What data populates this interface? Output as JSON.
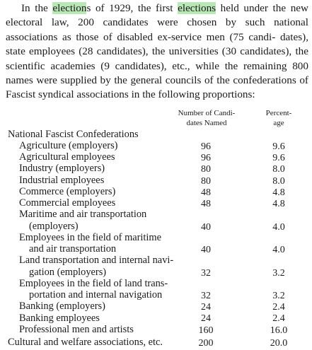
{
  "paragraph": {
    "l1_pre": "In the ",
    "l1_hl1": "election",
    "l1_mid": "s of 1929, the first ",
    "l1_hl2": "elections",
    "l1_post": " held under the new",
    "l2": "electoral law, 200 candidates were chosen by such national",
    "l3": "associations as those of disabled ex-service men (75 candi-",
    "l4": "dates), state employees (28 candidates), the universities (30",
    "l5": "candidates), the scientific academies (9 candidates), etc., while",
    "l6": "the remaining 800 names were supplied by the general councils",
    "l7": "of the confederations of Fascist syndical associations in the",
    "l8": "following proportions:"
  },
  "table": {
    "col1_header": [
      "Number of Candi-",
      "dates Named"
    ],
    "col2_header": [
      "Percent-",
      "age"
    ],
    "section_title": "National Fascist Confederations",
    "rows": [
      {
        "label": [
          "Agriculture (employers)"
        ],
        "count": "96",
        "pct": "9.6"
      },
      {
        "label": [
          "Agricultural employees"
        ],
        "count": "96",
        "pct": "9.6"
      },
      {
        "label": [
          "Industry (employers)"
        ],
        "count": "80",
        "pct": "8.0"
      },
      {
        "label": [
          "Industrial employees"
        ],
        "count": "80",
        "pct": "8.0"
      },
      {
        "label": [
          "Commerce (employers)"
        ],
        "count": "48",
        "pct": "4.8"
      },
      {
        "label": [
          "Commercial employees"
        ],
        "count": "48",
        "pct": "4.8"
      },
      {
        "label": [
          "Maritime and air transportation",
          "(employers)"
        ],
        "count": "40",
        "pct": "4.0"
      },
      {
        "label": [
          "Employees in the field of maritime",
          "and air transportation"
        ],
        "count": "40",
        "pct": "4.0"
      },
      {
        "label": [
          "Land transportation and internal navi-",
          "gation (employers)"
        ],
        "count": "32",
        "pct": "3.2"
      },
      {
        "label": [
          "Employees in the field of land trans-",
          "portation and internal navigation"
        ],
        "count": "32",
        "pct": "3.2"
      },
      {
        "label": [
          "Banking (employers)"
        ],
        "count": "24",
        "pct": "2.4"
      },
      {
        "label": [
          "Banking employees"
        ],
        "count": "24",
        "pct": "2.4"
      },
      {
        "label": [
          "Professional men and artists"
        ],
        "count": "160",
        "pct": "16.0"
      }
    ],
    "footer_row": {
      "label": "Cultural and welfare associations, etc.",
      "count": "200",
      "pct": "20.0"
    }
  },
  "colors": {
    "highlight": "#b9e7b5",
    "text": "#1b1b1b"
  }
}
